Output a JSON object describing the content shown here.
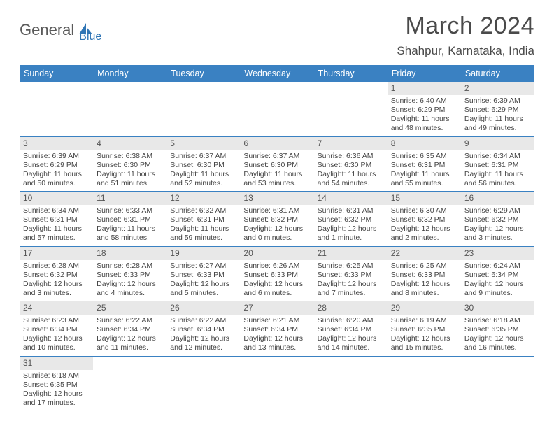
{
  "logo": {
    "part1": "General",
    "part2": "Blue"
  },
  "title": "March 2024",
  "location": "Shahpur, Karnataka, India",
  "header_bg": "#3a81c2",
  "daynum_bg": "#e8e8e8",
  "row_border": "#3a81c2",
  "dow": [
    "Sunday",
    "Monday",
    "Tuesday",
    "Wednesday",
    "Thursday",
    "Friday",
    "Saturday"
  ],
  "weeks": [
    [
      null,
      null,
      null,
      null,
      null,
      {
        "n": "1",
        "sr": "Sunrise: 6:40 AM",
        "ss": "Sunset: 6:29 PM",
        "d1": "Daylight: 11 hours",
        "d2": "and 48 minutes."
      },
      {
        "n": "2",
        "sr": "Sunrise: 6:39 AM",
        "ss": "Sunset: 6:29 PM",
        "d1": "Daylight: 11 hours",
        "d2": "and 49 minutes."
      }
    ],
    [
      {
        "n": "3",
        "sr": "Sunrise: 6:39 AM",
        "ss": "Sunset: 6:29 PM",
        "d1": "Daylight: 11 hours",
        "d2": "and 50 minutes."
      },
      {
        "n": "4",
        "sr": "Sunrise: 6:38 AM",
        "ss": "Sunset: 6:30 PM",
        "d1": "Daylight: 11 hours",
        "d2": "and 51 minutes."
      },
      {
        "n": "5",
        "sr": "Sunrise: 6:37 AM",
        "ss": "Sunset: 6:30 PM",
        "d1": "Daylight: 11 hours",
        "d2": "and 52 minutes."
      },
      {
        "n": "6",
        "sr": "Sunrise: 6:37 AM",
        "ss": "Sunset: 6:30 PM",
        "d1": "Daylight: 11 hours",
        "d2": "and 53 minutes."
      },
      {
        "n": "7",
        "sr": "Sunrise: 6:36 AM",
        "ss": "Sunset: 6:30 PM",
        "d1": "Daylight: 11 hours",
        "d2": "and 54 minutes."
      },
      {
        "n": "8",
        "sr": "Sunrise: 6:35 AM",
        "ss": "Sunset: 6:31 PM",
        "d1": "Daylight: 11 hours",
        "d2": "and 55 minutes."
      },
      {
        "n": "9",
        "sr": "Sunrise: 6:34 AM",
        "ss": "Sunset: 6:31 PM",
        "d1": "Daylight: 11 hours",
        "d2": "and 56 minutes."
      }
    ],
    [
      {
        "n": "10",
        "sr": "Sunrise: 6:34 AM",
        "ss": "Sunset: 6:31 PM",
        "d1": "Daylight: 11 hours",
        "d2": "and 57 minutes."
      },
      {
        "n": "11",
        "sr": "Sunrise: 6:33 AM",
        "ss": "Sunset: 6:31 PM",
        "d1": "Daylight: 11 hours",
        "d2": "and 58 minutes."
      },
      {
        "n": "12",
        "sr": "Sunrise: 6:32 AM",
        "ss": "Sunset: 6:31 PM",
        "d1": "Daylight: 11 hours",
        "d2": "and 59 minutes."
      },
      {
        "n": "13",
        "sr": "Sunrise: 6:31 AM",
        "ss": "Sunset: 6:32 PM",
        "d1": "Daylight: 12 hours",
        "d2": "and 0 minutes."
      },
      {
        "n": "14",
        "sr": "Sunrise: 6:31 AM",
        "ss": "Sunset: 6:32 PM",
        "d1": "Daylight: 12 hours",
        "d2": "and 1 minute."
      },
      {
        "n": "15",
        "sr": "Sunrise: 6:30 AM",
        "ss": "Sunset: 6:32 PM",
        "d1": "Daylight: 12 hours",
        "d2": "and 2 minutes."
      },
      {
        "n": "16",
        "sr": "Sunrise: 6:29 AM",
        "ss": "Sunset: 6:32 PM",
        "d1": "Daylight: 12 hours",
        "d2": "and 3 minutes."
      }
    ],
    [
      {
        "n": "17",
        "sr": "Sunrise: 6:28 AM",
        "ss": "Sunset: 6:32 PM",
        "d1": "Daylight: 12 hours",
        "d2": "and 3 minutes."
      },
      {
        "n": "18",
        "sr": "Sunrise: 6:28 AM",
        "ss": "Sunset: 6:33 PM",
        "d1": "Daylight: 12 hours",
        "d2": "and 4 minutes."
      },
      {
        "n": "19",
        "sr": "Sunrise: 6:27 AM",
        "ss": "Sunset: 6:33 PM",
        "d1": "Daylight: 12 hours",
        "d2": "and 5 minutes."
      },
      {
        "n": "20",
        "sr": "Sunrise: 6:26 AM",
        "ss": "Sunset: 6:33 PM",
        "d1": "Daylight: 12 hours",
        "d2": "and 6 minutes."
      },
      {
        "n": "21",
        "sr": "Sunrise: 6:25 AM",
        "ss": "Sunset: 6:33 PM",
        "d1": "Daylight: 12 hours",
        "d2": "and 7 minutes."
      },
      {
        "n": "22",
        "sr": "Sunrise: 6:25 AM",
        "ss": "Sunset: 6:33 PM",
        "d1": "Daylight: 12 hours",
        "d2": "and 8 minutes."
      },
      {
        "n": "23",
        "sr": "Sunrise: 6:24 AM",
        "ss": "Sunset: 6:34 PM",
        "d1": "Daylight: 12 hours",
        "d2": "and 9 minutes."
      }
    ],
    [
      {
        "n": "24",
        "sr": "Sunrise: 6:23 AM",
        "ss": "Sunset: 6:34 PM",
        "d1": "Daylight: 12 hours",
        "d2": "and 10 minutes."
      },
      {
        "n": "25",
        "sr": "Sunrise: 6:22 AM",
        "ss": "Sunset: 6:34 PM",
        "d1": "Daylight: 12 hours",
        "d2": "and 11 minutes."
      },
      {
        "n": "26",
        "sr": "Sunrise: 6:22 AM",
        "ss": "Sunset: 6:34 PM",
        "d1": "Daylight: 12 hours",
        "d2": "and 12 minutes."
      },
      {
        "n": "27",
        "sr": "Sunrise: 6:21 AM",
        "ss": "Sunset: 6:34 PM",
        "d1": "Daylight: 12 hours",
        "d2": "and 13 minutes."
      },
      {
        "n": "28",
        "sr": "Sunrise: 6:20 AM",
        "ss": "Sunset: 6:34 PM",
        "d1": "Daylight: 12 hours",
        "d2": "and 14 minutes."
      },
      {
        "n": "29",
        "sr": "Sunrise: 6:19 AM",
        "ss": "Sunset: 6:35 PM",
        "d1": "Daylight: 12 hours",
        "d2": "and 15 minutes."
      },
      {
        "n": "30",
        "sr": "Sunrise: 6:18 AM",
        "ss": "Sunset: 6:35 PM",
        "d1": "Daylight: 12 hours",
        "d2": "and 16 minutes."
      }
    ],
    [
      {
        "n": "31",
        "sr": "Sunrise: 6:18 AM",
        "ss": "Sunset: 6:35 PM",
        "d1": "Daylight: 12 hours",
        "d2": "and 17 minutes."
      },
      null,
      null,
      null,
      null,
      null,
      null
    ]
  ]
}
